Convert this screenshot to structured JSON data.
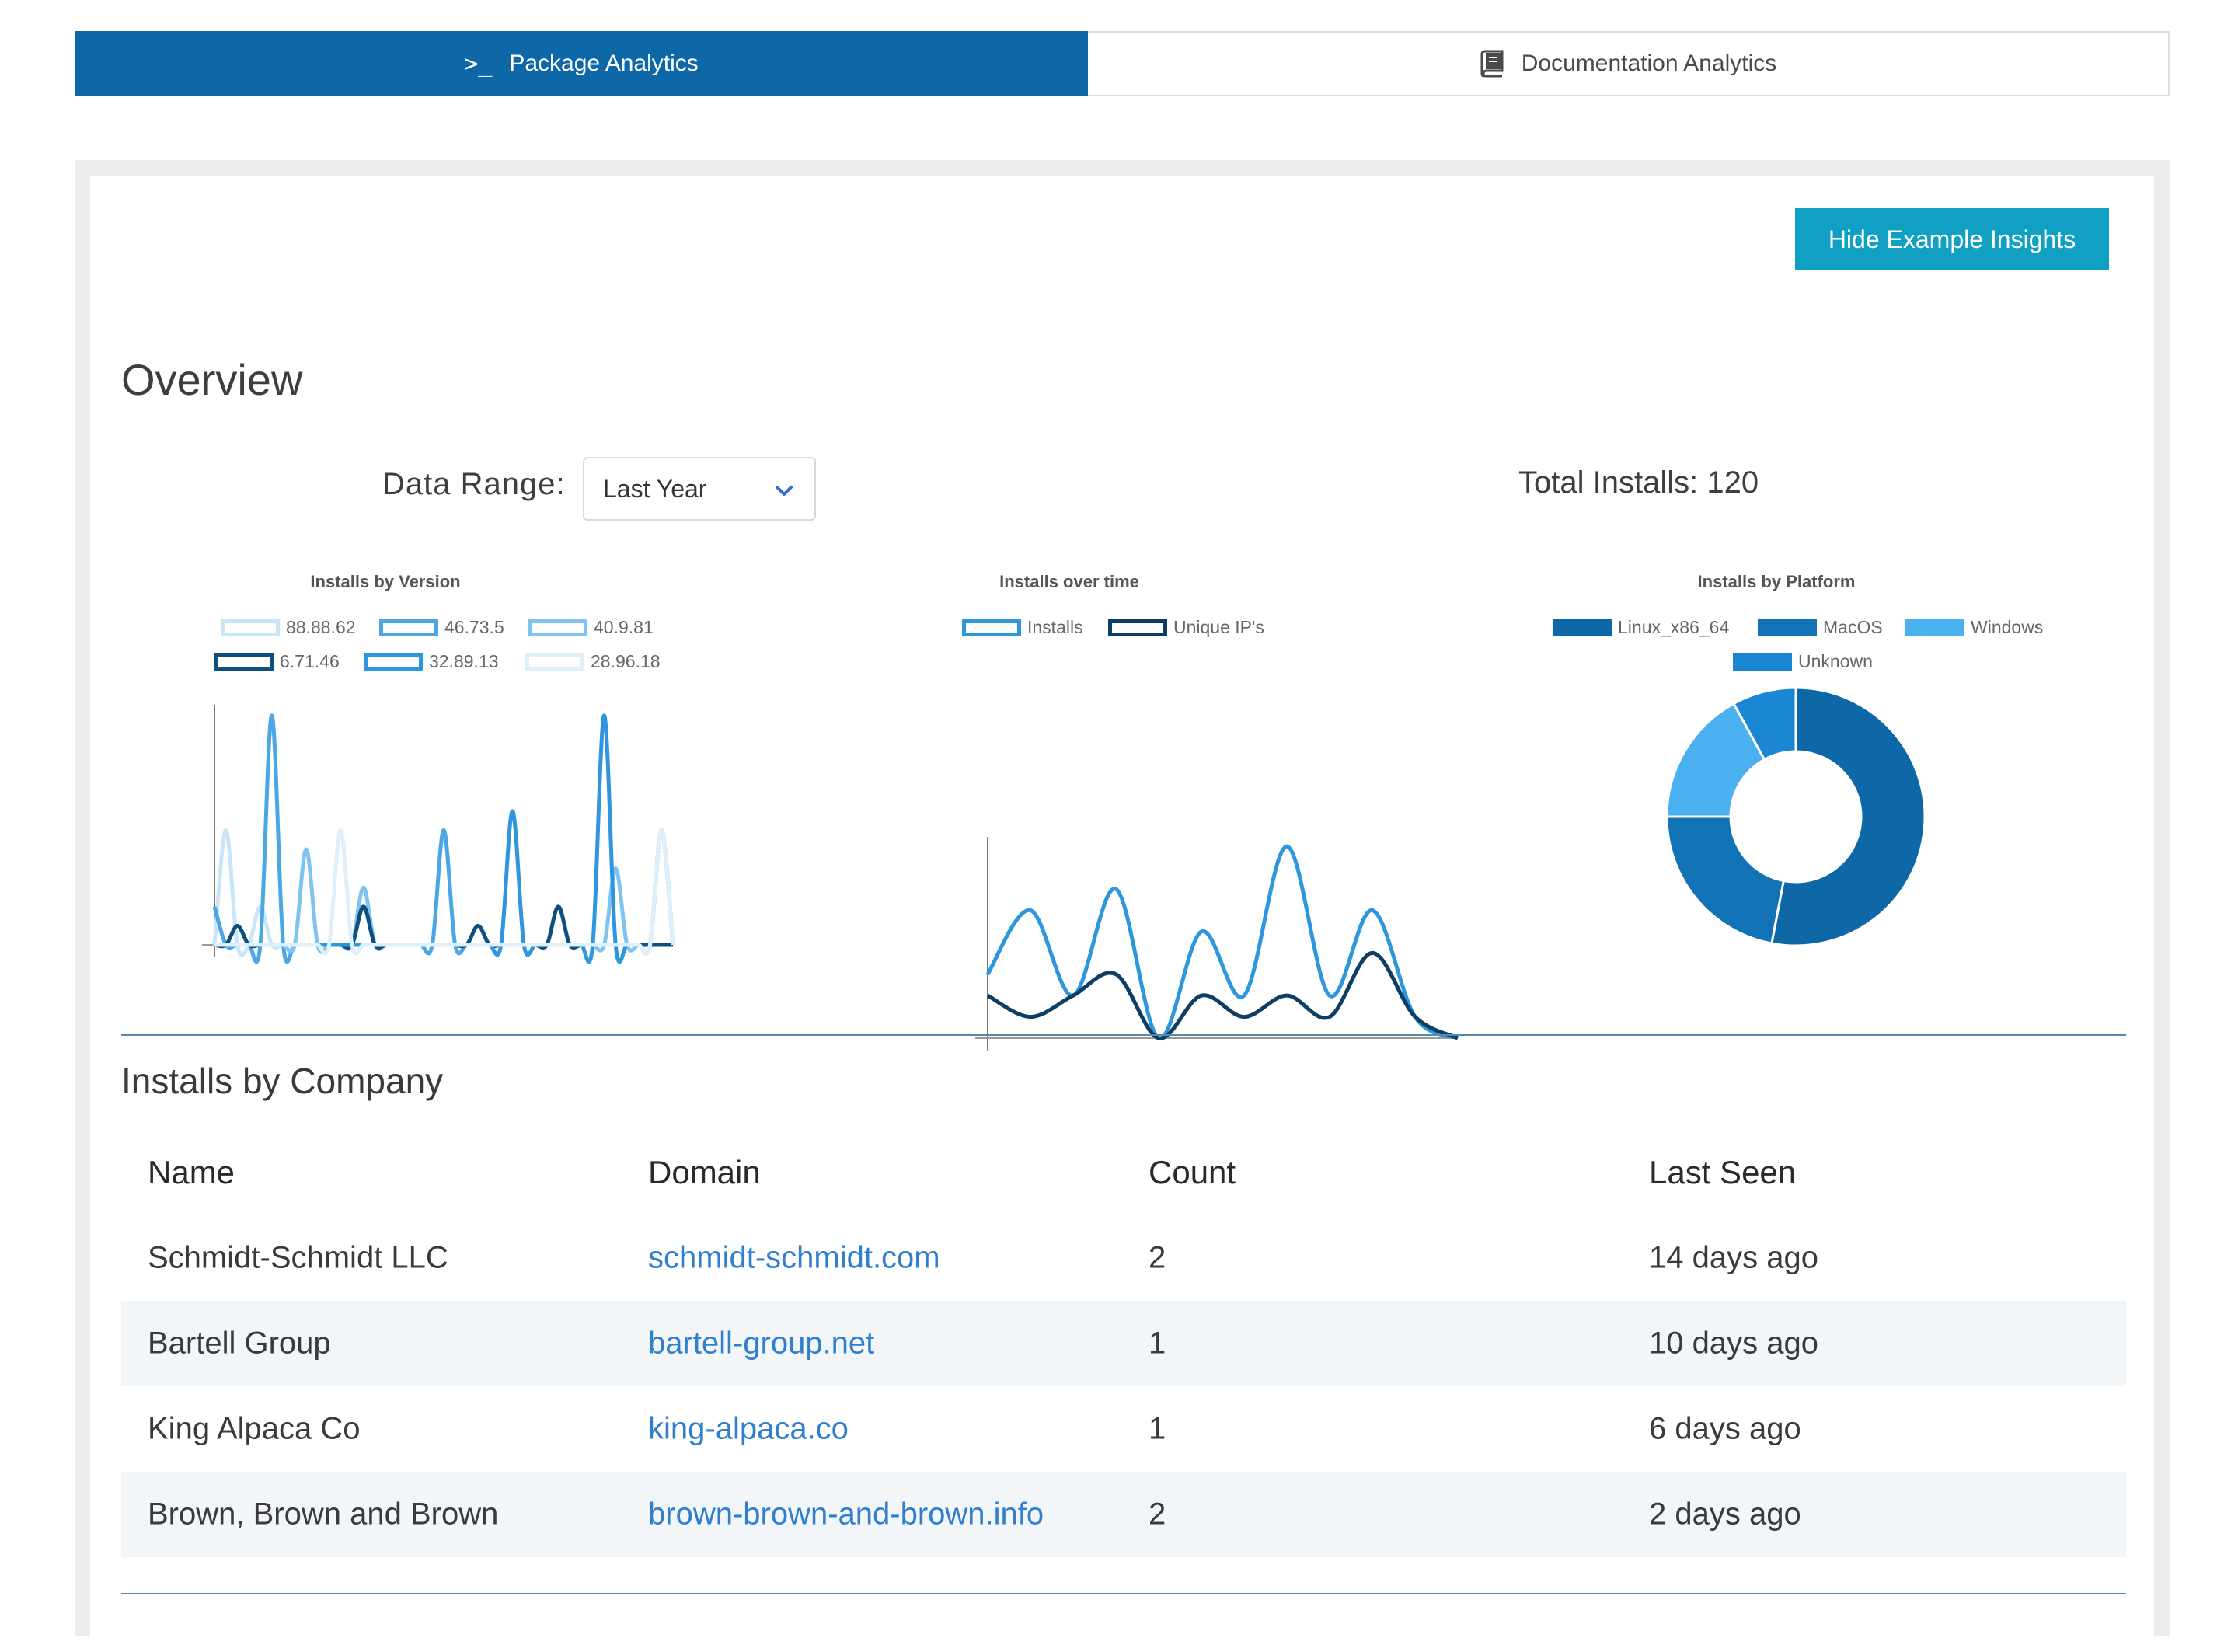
{
  "tabs": [
    {
      "label": "Package Analytics",
      "icon": "terminal-icon",
      "active": true
    },
    {
      "label": "Documentation Analytics",
      "icon": "book-icon",
      "active": false
    }
  ],
  "hide_button": "Hide Example Insights",
  "overview_title": "Overview",
  "range": {
    "label": "Data Range:",
    "value": "Last Year"
  },
  "total_installs": "Total Installs: 120",
  "colors": {
    "brand": "#0e68a8",
    "button": "#10a0c4",
    "link": "#2f7fce"
  },
  "chart_data": [
    {
      "type": "line",
      "title": "Installs by Version",
      "x": [
        0,
        1,
        2,
        3,
        4,
        5,
        6,
        7,
        8,
        9,
        10,
        11,
        12,
        13,
        14,
        15,
        16,
        17,
        18,
        19,
        20,
        21,
        22,
        23,
        24,
        25,
        26,
        27,
        28,
        29,
        30,
        31,
        32,
        33,
        34,
        35,
        36,
        37,
        38,
        39,
        40
      ],
      "series": [
        {
          "name": "88.88.62",
          "color": "#c9e6f8",
          "values": [
            0,
            3,
            0,
            0,
            1,
            0,
            0,
            0,
            0,
            0,
            0,
            0,
            0,
            0,
            0,
            0,
            0,
            0,
            0,
            0,
            0,
            0,
            0,
            0,
            0,
            0,
            0,
            0,
            0,
            0,
            0,
            0,
            0,
            0,
            0,
            0,
            0,
            0,
            0,
            0,
            0
          ]
        },
        {
          "name": "46.73.5",
          "color": "#4aa6e6",
          "values": [
            1,
            0,
            0,
            0,
            0,
            6,
            0,
            0,
            0,
            0,
            0,
            0,
            0,
            0,
            0,
            0,
            0,
            0,
            0,
            0,
            3,
            0,
            0,
            0,
            0,
            0,
            0,
            0,
            0,
            0,
            0,
            0,
            0,
            0,
            0,
            0,
            0,
            0,
            0,
            0,
            0
          ]
        },
        {
          "name": "40.9.81",
          "color": "#7fc4f0",
          "values": [
            0,
            0,
            0,
            0,
            0,
            0,
            0,
            0,
            2.5,
            0,
            0,
            0,
            0,
            1.5,
            0,
            0,
            0,
            0,
            0,
            0,
            0,
            0,
            0,
            0,
            0,
            0,
            0,
            0,
            0,
            0,
            0,
            0,
            0,
            0,
            0,
            2,
            0,
            0,
            0,
            0,
            0
          ]
        },
        {
          "name": "6.71.46",
          "color": "#0d4f7e",
          "values": [
            0,
            0,
            0.5,
            0,
            0,
            0,
            0,
            0,
            0,
            0,
            0,
            0,
            0,
            1,
            0,
            0,
            0,
            0,
            0,
            0,
            0,
            0,
            0,
            0.5,
            0,
            0,
            0,
            0,
            0,
            0,
            1,
            0,
            0,
            0,
            0,
            0,
            0,
            0,
            0,
            0,
            0
          ]
        },
        {
          "name": "32.89.13",
          "color": "#2d96de",
          "values": [
            0,
            0,
            0,
            0,
            0,
            0,
            0,
            0,
            0,
            0,
            0,
            0,
            0,
            0,
            0,
            0,
            0,
            0,
            0,
            0,
            0,
            0,
            0,
            0,
            0,
            0,
            3.5,
            0,
            0,
            0,
            0,
            0,
            0,
            0,
            6,
            0,
            0,
            0,
            0,
            3,
            0
          ]
        },
        {
          "name": "28.96.18",
          "color": "#dff0fb",
          "values": [
            0,
            0,
            0,
            0,
            0,
            0,
            0,
            0,
            0,
            0,
            0,
            3,
            0,
            0,
            0,
            0,
            0,
            0,
            0,
            0,
            0,
            0,
            0,
            0,
            0,
            0,
            0,
            0,
            0,
            0,
            0,
            0,
            0,
            0,
            0,
            0,
            0,
            0,
            0,
            3,
            0
          ]
        }
      ]
    },
    {
      "type": "line",
      "title": "Installs over time",
      "x": [
        0,
        1,
        2,
        3,
        4,
        5,
        6,
        7,
        8,
        9,
        10,
        11
      ],
      "series": [
        {
          "name": "Installs",
          "color": "#2d96de",
          "values": [
            3,
            6,
            2,
            7,
            0,
            5,
            2,
            9,
            2,
            6,
            1,
            0
          ]
        },
        {
          "name": "Unique IP's",
          "color": "#0d3f66",
          "values": [
            2,
            1,
            2,
            3,
            0,
            2,
            1,
            2,
            1,
            4,
            1,
            0
          ]
        }
      ]
    },
    {
      "type": "pie",
      "title": "Installs by Platform",
      "categories": [
        "Linux_x86_64",
        "MacOS",
        "Windows",
        "Unknown"
      ],
      "values": [
        53,
        22,
        17,
        8
      ],
      "colors": [
        "#0e68a8",
        "#1172b5",
        "#4bb0ef",
        "#1a86d4"
      ]
    }
  ],
  "company": {
    "title": "Installs by Company",
    "headers": [
      "Name",
      "Domain",
      "Count",
      "Last Seen"
    ],
    "rows": [
      [
        "Schmidt-Schmidt LLC",
        "schmidt-schmidt.com",
        "2",
        "14 days ago"
      ],
      [
        "Bartell Group",
        "bartell-group.net",
        "1",
        "10 days ago"
      ],
      [
        "King Alpaca Co",
        "king-alpaca.co",
        "1",
        "6 days ago"
      ],
      [
        "Brown, Brown and Brown",
        "brown-brown-and-brown.info",
        "2",
        "2 days ago"
      ]
    ]
  }
}
